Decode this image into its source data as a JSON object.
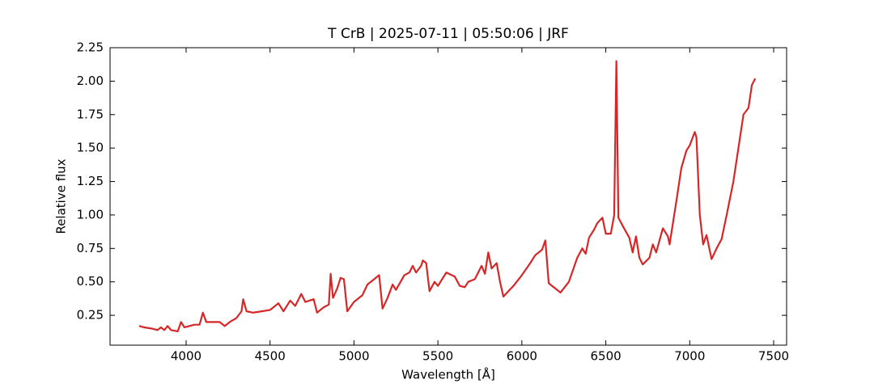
{
  "chart_data": {
    "type": "line",
    "title": "T CrB | 2025-07-11 | 05:50:06 | JRF",
    "x_label": "Wavelength [Å]",
    "y_label": "Relative flux",
    "xlim": [
      3547,
      7577
    ],
    "ylim": [
      0.027,
      2.25
    ],
    "xticks": [
      4000,
      4500,
      5000,
      5500,
      6000,
      6500,
      7000,
      7500
    ],
    "yticks": [
      0.25,
      {
        "value": 0.5,
        "label": "0.50"
      },
      0.75,
      {
        "value": 1,
        "label": "1.00"
      },
      1.25,
      {
        "value": 1.5,
        "label": "1.50"
      },
      1.75,
      {
        "value": 2,
        "label": "2.00"
      },
      2.25
    ],
    "x": [
      3720,
      3750,
      3800,
      3830,
      3850,
      3870,
      3890,
      3910,
      3950,
      3970,
      3990,
      4050,
      4080,
      4100,
      4120,
      4200,
      4230,
      4260,
      4300,
      4330,
      4340,
      4360,
      4400,
      4450,
      4500,
      4550,
      4580,
      4620,
      4650,
      4686,
      4710,
      4760,
      4780,
      4820,
      4850,
      4861,
      4875,
      4900,
      4920,
      4940,
      4960,
      5000,
      5050,
      5080,
      5120,
      5150,
      5170,
      5200,
      5230,
      5250,
      5300,
      5330,
      5350,
      5370,
      5400,
      5410,
      5430,
      5450,
      5480,
      5500,
      5550,
      5600,
      5630,
      5660,
      5680,
      5720,
      5760,
      5780,
      5800,
      5820,
      5850,
      5870,
      5890,
      5950,
      6000,
      6050,
      6080,
      6120,
      6140,
      6160,
      6200,
      6230,
      6280,
      6330,
      6360,
      6380,
      6400,
      6430,
      6450,
      6480,
      6500,
      6530,
      6550,
      6563,
      6575,
      6600,
      6640,
      6660,
      6680,
      6700,
      6720,
      6760,
      6780,
      6800,
      6840,
      6870,
      6880,
      6920,
      6950,
      6980,
      7000,
      7030,
      7040,
      7060,
      7080,
      7100,
      7130,
      7160,
      7190,
      7220,
      7260,
      7290,
      7320,
      7350,
      7370,
      7390
    ],
    "series": [
      {
        "name": "T CrB",
        "color": "#d62728",
        "values": [
          0.17,
          0.16,
          0.15,
          0.14,
          0.16,
          0.14,
          0.17,
          0.14,
          0.13,
          0.2,
          0.16,
          0.18,
          0.18,
          0.27,
          0.2,
          0.2,
          0.17,
          0.2,
          0.23,
          0.28,
          0.37,
          0.28,
          0.27,
          0.28,
          0.29,
          0.34,
          0.28,
          0.36,
          0.32,
          0.41,
          0.35,
          0.37,
          0.27,
          0.31,
          0.33,
          0.56,
          0.38,
          0.45,
          0.53,
          0.52,
          0.28,
          0.35,
          0.4,
          0.48,
          0.52,
          0.55,
          0.3,
          0.38,
          0.48,
          0.44,
          0.55,
          0.57,
          0.62,
          0.57,
          0.62,
          0.66,
          0.64,
          0.43,
          0.5,
          0.47,
          0.57,
          0.54,
          0.47,
          0.46,
          0.5,
          0.52,
          0.62,
          0.56,
          0.72,
          0.6,
          0.64,
          0.5,
          0.39,
          0.47,
          0.55,
          0.64,
          0.7,
          0.74,
          0.81,
          0.49,
          0.45,
          0.42,
          0.5,
          0.68,
          0.75,
          0.71,
          0.83,
          0.89,
          0.94,
          0.98,
          0.86,
          0.86,
          1.0,
          2.15,
          0.98,
          0.92,
          0.83,
          0.72,
          0.84,
          0.68,
          0.63,
          0.68,
          0.78,
          0.72,
          0.9,
          0.84,
          0.78,
          1.1,
          1.35,
          1.48,
          1.52,
          1.62,
          1.58,
          1.0,
          0.78,
          0.85,
          0.67,
          0.75,
          0.82,
          1.0,
          1.25,
          1.5,
          1.75,
          1.8,
          1.97,
          2.02
        ]
      }
    ]
  }
}
